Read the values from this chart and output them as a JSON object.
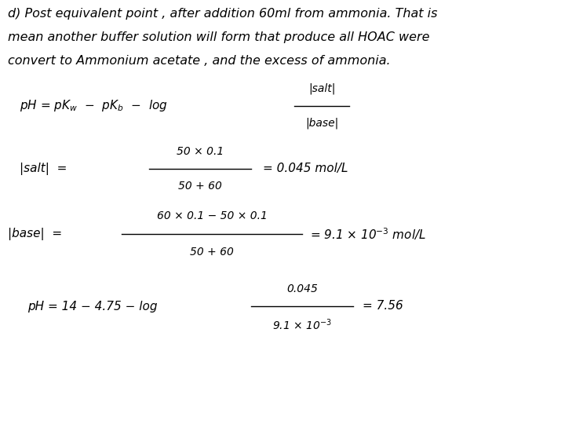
{
  "background_color": "#ffffff",
  "title_line1": "d) Post equivalent point , after addition 60ml from ammonia. That is",
  "title_line2": "mean another buffer solution will form that produce all HOAC were",
  "title_line3": "convert to Ammonium acetate , and the excess of ammonia.",
  "font_size_title": 11.5,
  "font_size_formula": 11.0,
  "font_size_small": 10.0
}
